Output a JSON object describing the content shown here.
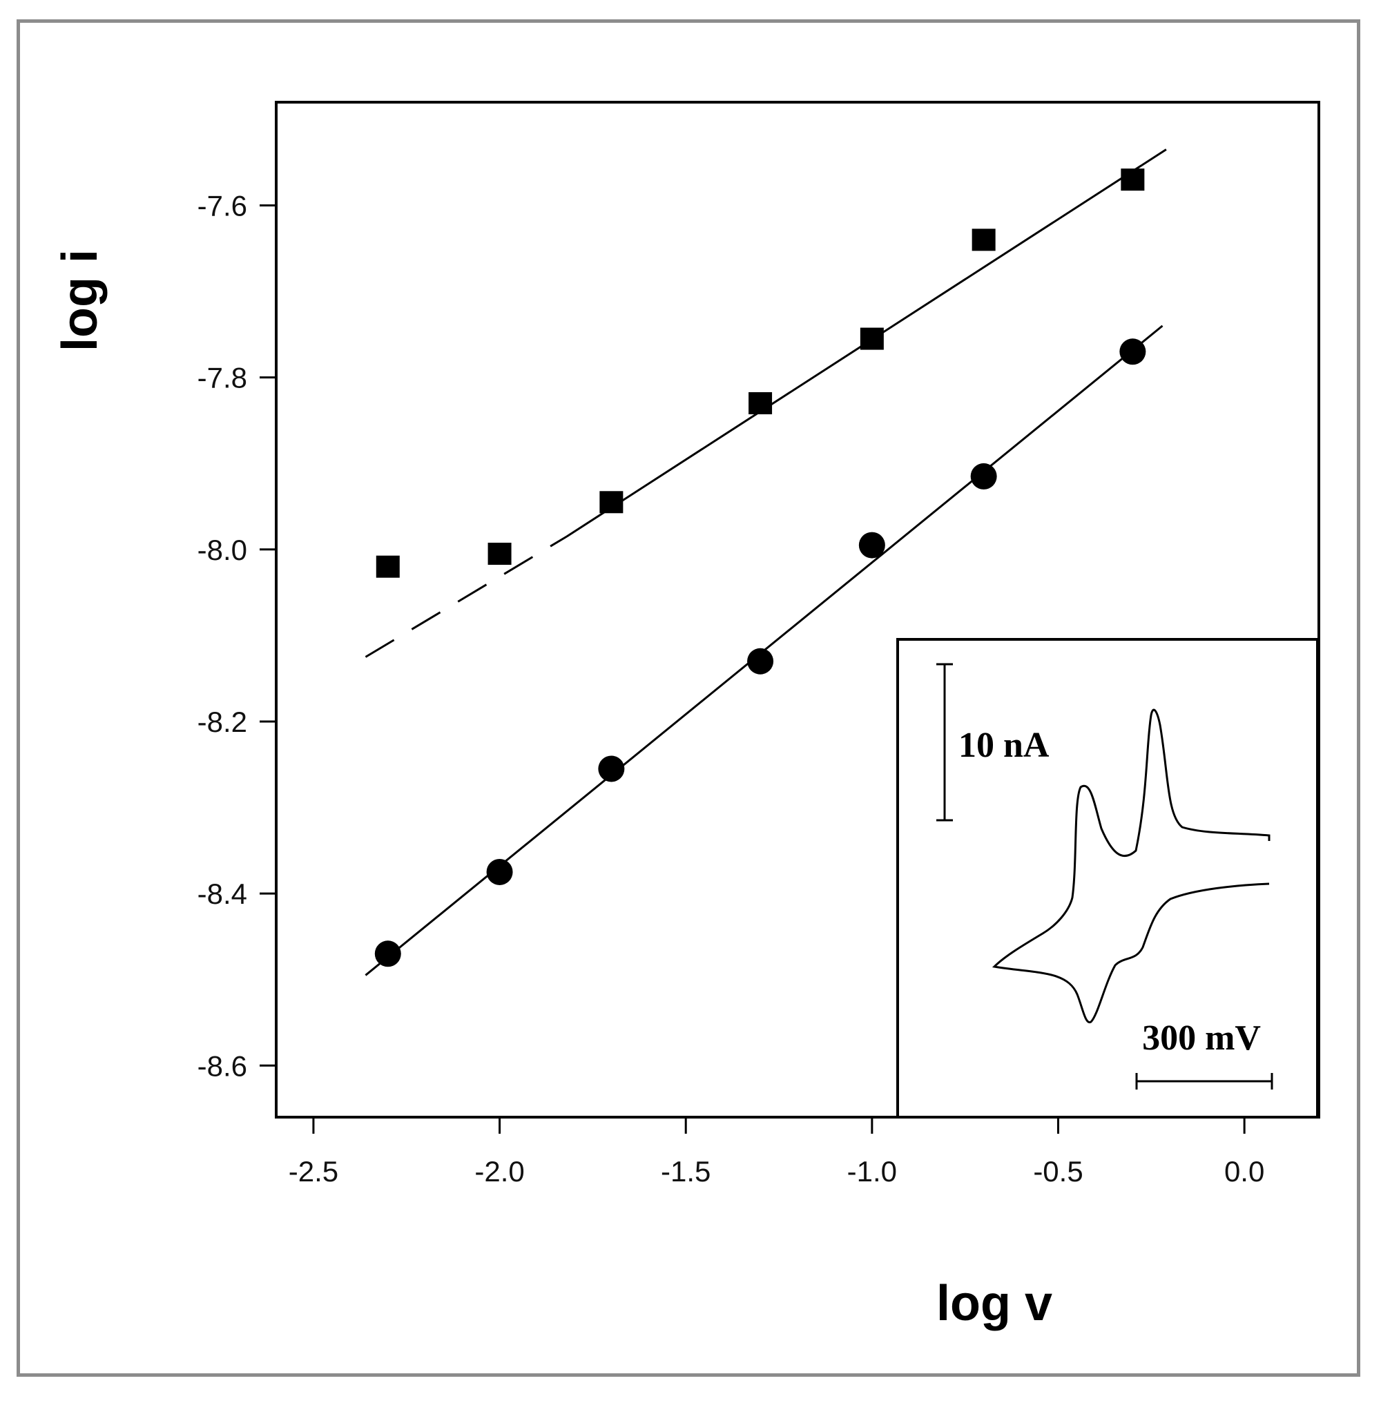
{
  "chart_data": {
    "type": "scatter",
    "xlabel": "log v",
    "ylabel": "log i",
    "xlim": [
      -2.6,
      0.2
    ],
    "ylim": [
      -8.66,
      -7.48
    ],
    "x_ticks": [
      -2.5,
      -2.0,
      -1.5,
      -1.0,
      -0.5,
      0.0
    ],
    "x_tick_labels": [
      "-2.5",
      "-2.0",
      "-1.5",
      "-1.0",
      "-0.5",
      "0.0"
    ],
    "y_ticks": [
      -7.6,
      -7.8,
      -8.0,
      -8.2,
      -8.4,
      -8.6
    ],
    "y_tick_labels": [
      "-7.6",
      "-7.8",
      "-8.0",
      "-8.2",
      "-8.4",
      "-8.6"
    ],
    "grid": false,
    "series": [
      {
        "marker": "square",
        "x": [
          -2.3,
          -2.0,
          -1.7,
          -1.3,
          -1.0,
          -0.7,
          -0.3
        ],
        "y": [
          -8.02,
          -8.005,
          -7.945,
          -7.83,
          -7.755,
          -7.64,
          -7.57
        ]
      },
      {
        "marker": "circle",
        "x": [
          -2.3,
          -2.0,
          -1.7,
          -1.3,
          -1.0,
          -0.7,
          -0.3
        ],
        "y": [
          -8.47,
          -8.375,
          -8.255,
          -8.13,
          -7.995,
          -7.915,
          -7.77
        ]
      }
    ],
    "fit_lines": [
      {
        "style": "solid",
        "x": [
          -1.82,
          -0.21
        ],
        "y": [
          -7.985,
          -7.535
        ]
      },
      {
        "style": "dashed",
        "x": [
          -2.36,
          -1.82
        ],
        "y": [
          -8.125,
          -7.985
        ]
      },
      {
        "style": "solid",
        "x": [
          -2.36,
          -0.22
        ],
        "y": [
          -8.495,
          -7.74
        ]
      }
    ],
    "inset": {
      "current_scale_label": "10 nA",
      "potential_scale_label": "300 mV"
    }
  }
}
